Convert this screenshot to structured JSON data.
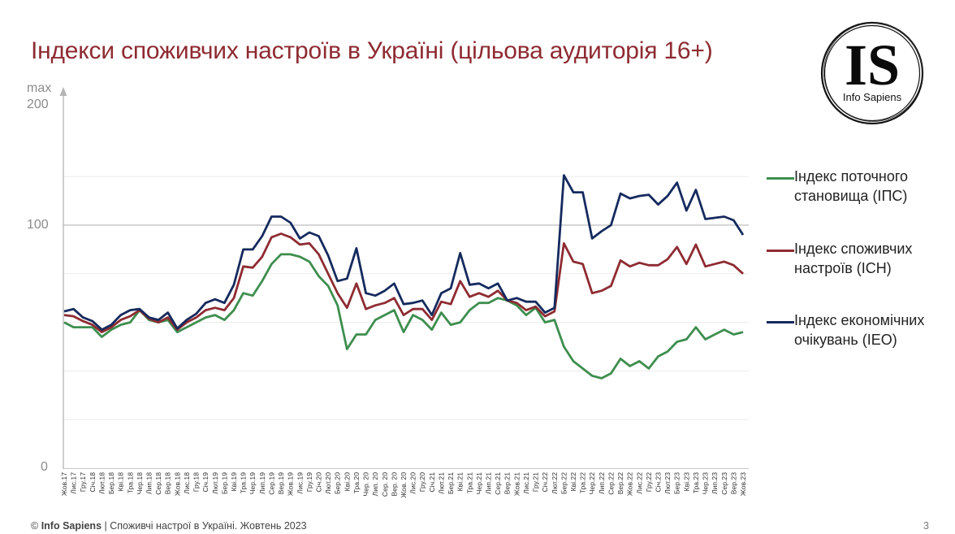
{
  "slide": {
    "title": "Індекси споживчих настроїв в Україні (цільова аудиторія 16+)",
    "logo": {
      "initials": "IS",
      "name": "Info Sapiens"
    },
    "footer": {
      "copyright_symbol": "©",
      "brand": "Info Sapiens",
      "separator": "|",
      "text": "Споживчі настрої в Україні. Жовтень 2023"
    },
    "page_number": "3"
  },
  "axis": {
    "max_label": "max",
    "y_top": "200",
    "y_mid": "100",
    "y_bottom": "0"
  },
  "legend": [
    {
      "label": "Індекс поточного становища (ІПС)",
      "color": "#3e8e4f"
    },
    {
      "label": "Індекс споживчих настроїв (ІСН)",
      "color": "#8e2b32"
    },
    {
      "label": "Індекс економічних очікувань (ІЕО)",
      "color": "#152a5e"
    }
  ],
  "chart_data": {
    "type": "line",
    "title": "Індекси споживчих настроїв в Україні (цільова аудиторія 16+)",
    "xlabel": "",
    "ylabel": "",
    "ylim": [
      0,
      200
    ],
    "y_ticks_labeled": [
      0,
      100,
      200
    ],
    "y_max_annotation": "max",
    "gridlines": [
      20,
      40,
      60,
      80,
      100,
      120
    ],
    "grid": true,
    "legend_position": "right",
    "categories": [
      "Жов.17",
      "Лис.17",
      "Гру.17",
      "Січ.18",
      "Лют.18",
      "Бер.18",
      "Кві.18",
      "Тра.18",
      "Чер.18",
      "Лип.18",
      "Сер.18",
      "Вер.18",
      "Жов.18",
      "Лис.18",
      "Гру.18",
      "Січ.19",
      "Лют.19",
      "Бер.19",
      "Кві.19",
      "Тра.19",
      "Чер.19",
      "Лип.19",
      "Сер.19",
      "Вер.19",
      "Жов.19",
      "Лис.19",
      "Гру.19",
      "Січ.20",
      "Лют.20",
      "Бер.20",
      "Кві.20",
      "Тра.20",
      "Чер. 20",
      "Лип. 20",
      "Сер. 20",
      "Вер. 20",
      "Жов. 20",
      "Лис.20",
      "Гру.20",
      "Січ.21",
      "Лют.21",
      "Бер.21",
      "Кві.21",
      "Тра.21",
      "Чер.21",
      "Лип.21",
      "Сер.21",
      "Вер.21",
      "Жов.21",
      "Лис.21",
      "Гру.21",
      "Січ.22",
      "Лют.22",
      "Бер.22",
      "Кві.22",
      "Тра.22",
      "Чер.22",
      "Лип.22",
      "Сер.22",
      "Вер.22",
      "Жов.22",
      "Лис.22",
      "Гру.22",
      "Січ.23",
      "Лют.23",
      "Бер.23",
      "Кві.23",
      "Тра.23",
      "Чер.23",
      "Лип.23",
      "Сер.23",
      "Вер.23",
      "Жов.23"
    ],
    "series": [
      {
        "name": "Індекс поточного становища (ІПС)",
        "color": "#3e8e4f",
        "values": [
          60,
          58,
          58,
          58,
          54,
          57,
          59,
          60,
          65,
          61,
          60,
          61,
          56,
          58,
          60,
          62,
          63,
          61,
          65,
          72,
          71,
          77,
          84,
          88,
          88,
          87,
          85,
          79,
          75,
          67,
          49,
          55,
          55,
          61,
          63,
          65,
          56,
          63,
          61,
          57,
          64,
          59,
          60,
          65,
          68,
          68,
          70,
          69,
          67,
          63,
          66,
          60,
          61,
          50,
          44,
          41,
          38,
          37,
          39,
          45,
          42,
          44,
          41,
          46,
          48,
          52,
          53,
          58,
          53,
          55,
          57,
          55,
          56
        ]
      },
      {
        "name": "Індекс споживчих настроїв (ІСН)",
        "color": "#8e2b32",
        "values": [
          63,
          62.5,
          60.5,
          59,
          56,
          58,
          61,
          62.5,
          65,
          61.5,
          60,
          62,
          57,
          60,
          62,
          65,
          66,
          65,
          70,
          83,
          82.5,
          87,
          95,
          96.5,
          95,
          92,
          92.5,
          88,
          80,
          72,
          66,
          76,
          65.5,
          67,
          68,
          70,
          63,
          65.5,
          65.5,
          61,
          68.5,
          67.5,
          77,
          70.5,
          72,
          70.5,
          73,
          69,
          68,
          65,
          66.5,
          62.5,
          64.5,
          92.5,
          85,
          84,
          72,
          73,
          75,
          85.5,
          83,
          84.5,
          83.5,
          83.5,
          86,
          91,
          84,
          92,
          83,
          84,
          85,
          83.5,
          80
        ]
      },
      {
        "name": "Індекс економічних очікувань (ІЕО)",
        "color": "#152a5e",
        "values": [
          64.5,
          65.5,
          62,
          60.5,
          57,
          59,
          63,
          65,
          65.5,
          62,
          61,
          64,
          57.5,
          61,
          63.5,
          68,
          69.5,
          68,
          75.5,
          90,
          90,
          95.5,
          103.5,
          103.5,
          101,
          94.5,
          97,
          95.5,
          87.5,
          77,
          78,
          90.5,
          72,
          71,
          73,
          76,
          67.5,
          68,
          69,
          63,
          72,
          74,
          88.5,
          75.5,
          76,
          74,
          76,
          69,
          70,
          68.5,
          68.5,
          64,
          66,
          120.5,
          113.5,
          113.5,
          94.5,
          97.5,
          100,
          113,
          111,
          112,
          112.5,
          108.5,
          112,
          117.5,
          106,
          114.5,
          102.5,
          103,
          103.5,
          102,
          96
        ]
      }
    ]
  }
}
